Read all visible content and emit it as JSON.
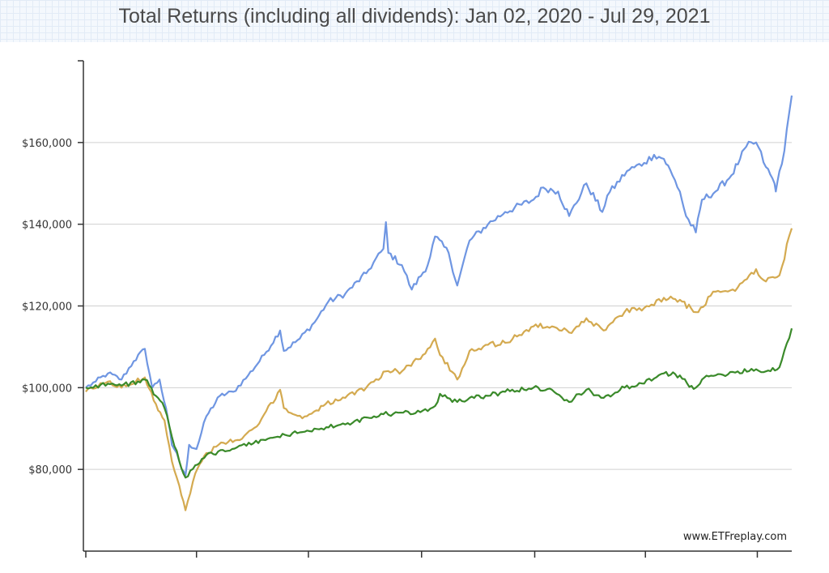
{
  "chart_data": {
    "type": "line",
    "title": "Total Returns (including all dividends): Jan 02, 2020 - Jul 29, 2021",
    "watermark": "www.ETFreplay.com",
    "xlabel": "",
    "ylabel": "",
    "x_range": [
      "2020-01-02",
      "2021-07-29"
    ],
    "ylim": [
      60000,
      180000
    ],
    "yticks": [
      80000,
      100000,
      120000,
      140000,
      160000
    ],
    "ytick_labels": [
      "$80,000",
      "$100,000",
      "$120,000",
      "$140,000",
      "$160,000"
    ],
    "grid": true,
    "legend": "none",
    "series": [
      {
        "color": "#6f96e2",
        "points": [
          [
            "2020-01-02",
            100000
          ],
          [
            "2020-01-10",
            101500
          ],
          [
            "2020-01-20",
            103500
          ],
          [
            "2020-01-31",
            102000
          ],
          [
            "2020-02-10",
            106500
          ],
          [
            "2020-02-19",
            109500
          ],
          [
            "2020-02-25",
            100000
          ],
          [
            "2020-03-02",
            102000
          ],
          [
            "2020-03-09",
            92000
          ],
          [
            "2020-03-12",
            86000
          ],
          [
            "2020-03-16",
            84000
          ],
          [
            "2020-03-20",
            80000
          ],
          [
            "2020-03-23",
            78500
          ],
          [
            "2020-03-26",
            86000
          ],
          [
            "2020-04-01",
            85000
          ],
          [
            "2020-04-09",
            93000
          ],
          [
            "2020-04-20",
            98000
          ],
          [
            "2020-05-01",
            99000
          ],
          [
            "2020-05-13",
            103000
          ],
          [
            "2020-05-26",
            108000
          ],
          [
            "2020-06-08",
            114000
          ],
          [
            "2020-06-11",
            109000
          ],
          [
            "2020-06-24",
            112000
          ],
          [
            "2020-07-06",
            116000
          ],
          [
            "2020-07-17",
            121000
          ],
          [
            "2020-07-31",
            123000
          ],
          [
            "2020-08-17",
            128000
          ],
          [
            "2020-08-31",
            134000
          ],
          [
            "2020-09-02",
            140500
          ],
          [
            "2020-09-04",
            133000
          ],
          [
            "2020-09-15",
            130000
          ],
          [
            "2020-09-23",
            124000
          ],
          [
            "2020-10-06",
            130000
          ],
          [
            "2020-10-12",
            137000
          ],
          [
            "2020-10-23",
            133000
          ],
          [
            "2020-10-30",
            125000
          ],
          [
            "2020-11-09",
            136000
          ],
          [
            "2020-11-24",
            140000
          ],
          [
            "2020-12-08",
            143000
          ],
          [
            "2020-12-31",
            146000
          ],
          [
            "2021-01-08",
            149000
          ],
          [
            "2021-01-20",
            148000
          ],
          [
            "2021-01-29",
            142000
          ],
          [
            "2021-02-12",
            150000
          ],
          [
            "2021-02-25",
            143000
          ],
          [
            "2021-03-01",
            147000
          ],
          [
            "2021-03-17",
            153000
          ],
          [
            "2021-03-31",
            155000
          ],
          [
            "2021-04-08",
            157000
          ],
          [
            "2021-04-16",
            156000
          ],
          [
            "2021-04-23",
            152000
          ],
          [
            "2021-04-29",
            148000
          ],
          [
            "2021-05-04",
            142000
          ],
          [
            "2021-05-12",
            138000
          ],
          [
            "2021-05-17",
            146000
          ],
          [
            "2021-05-28",
            148000
          ],
          [
            "2021-06-10",
            152000
          ],
          [
            "2021-06-17",
            156000
          ],
          [
            "2021-06-22",
            159000
          ],
          [
            "2021-06-30",
            160000
          ],
          [
            "2021-07-08",
            154000
          ],
          [
            "2021-07-15",
            150000
          ],
          [
            "2021-07-16",
            148000
          ],
          [
            "2021-07-19",
            153000
          ],
          [
            "2021-07-23",
            158000
          ],
          [
            "2021-07-29",
            171500
          ]
        ]
      },
      {
        "color": "#d4aa50",
        "points": [
          [
            "2020-01-02",
            99000
          ],
          [
            "2020-01-20",
            101500
          ],
          [
            "2020-01-31",
            100000
          ],
          [
            "2020-02-19",
            102500
          ],
          [
            "2020-02-28",
            96000
          ],
          [
            "2020-03-06",
            92000
          ],
          [
            "2020-03-12",
            82000
          ],
          [
            "2020-03-18",
            76000
          ],
          [
            "2020-03-23",
            70000
          ],
          [
            "2020-03-31",
            79000
          ],
          [
            "2020-04-09",
            84000
          ],
          [
            "2020-04-23",
            86500
          ],
          [
            "2020-05-08",
            87500
          ],
          [
            "2020-05-20",
            90500
          ],
          [
            "2020-06-08",
            99500
          ],
          [
            "2020-06-11",
            95000
          ],
          [
            "2020-06-26",
            92500
          ],
          [
            "2020-07-15",
            96000
          ],
          [
            "2020-07-31",
            97500
          ],
          [
            "2020-08-17",
            100000
          ],
          [
            "2020-09-02",
            104000
          ],
          [
            "2020-09-15",
            104000
          ],
          [
            "2020-10-02",
            108000
          ],
          [
            "2020-10-12",
            112000
          ],
          [
            "2020-10-16",
            108000
          ],
          [
            "2020-10-30",
            102000
          ],
          [
            "2020-11-09",
            109000
          ],
          [
            "2020-11-24",
            110500
          ],
          [
            "2020-12-08",
            111000
          ],
          [
            "2020-12-31",
            115000
          ],
          [
            "2021-01-15",
            115000
          ],
          [
            "2021-01-29",
            113500
          ],
          [
            "2021-02-12",
            117000
          ],
          [
            "2021-02-26",
            114000
          ],
          [
            "2021-03-15",
            118500
          ],
          [
            "2021-03-31",
            119500
          ],
          [
            "2021-04-16",
            122000
          ],
          [
            "2021-04-29",
            121500
          ],
          [
            "2021-05-12",
            118500
          ],
          [
            "2021-05-28",
            123500
          ],
          [
            "2021-06-15",
            124500
          ],
          [
            "2021-06-30",
            129000
          ],
          [
            "2021-07-08",
            126000
          ],
          [
            "2021-07-19",
            127500
          ],
          [
            "2021-07-29",
            139000
          ]
        ]
      },
      {
        "color": "#3a8a2a",
        "points": [
          [
            "2020-01-02",
            100000
          ],
          [
            "2020-01-20",
            101000
          ],
          [
            "2020-01-31",
            100500
          ],
          [
            "2020-02-19",
            102000
          ],
          [
            "2020-02-28",
            98000
          ],
          [
            "2020-03-06",
            95000
          ],
          [
            "2020-03-12",
            88000
          ],
          [
            "2020-03-18",
            82000
          ],
          [
            "2020-03-23",
            78000
          ],
          [
            "2020-03-31",
            81000
          ],
          [
            "2020-04-09",
            83500
          ],
          [
            "2020-04-30",
            85000
          ],
          [
            "2020-05-29",
            87500
          ],
          [
            "2020-06-30",
            89500
          ],
          [
            "2020-07-31",
            91000
          ],
          [
            "2020-08-31",
            93500
          ],
          [
            "2020-09-30",
            94000
          ],
          [
            "2020-10-12",
            95500
          ],
          [
            "2020-10-16",
            98500
          ],
          [
            "2020-10-30",
            96500
          ],
          [
            "2020-11-09",
            97500
          ],
          [
            "2020-11-24",
            98000
          ],
          [
            "2020-12-08",
            99000
          ],
          [
            "2020-12-31",
            100000
          ],
          [
            "2021-01-15",
            99500
          ],
          [
            "2021-01-29",
            96500
          ],
          [
            "2021-02-12",
            99500
          ],
          [
            "2021-02-26",
            97500
          ],
          [
            "2021-03-15",
            100000
          ],
          [
            "2021-03-31",
            101000
          ],
          [
            "2021-04-16",
            103500
          ],
          [
            "2021-04-29",
            103000
          ],
          [
            "2021-05-05",
            101000
          ],
          [
            "2021-05-12",
            100000
          ],
          [
            "2021-05-17",
            102000
          ],
          [
            "2021-05-28",
            103000
          ],
          [
            "2021-06-15",
            104000
          ],
          [
            "2021-06-30",
            104500
          ],
          [
            "2021-07-08",
            104000
          ],
          [
            "2021-07-19",
            105000
          ],
          [
            "2021-07-29",
            114500
          ]
        ]
      }
    ]
  }
}
